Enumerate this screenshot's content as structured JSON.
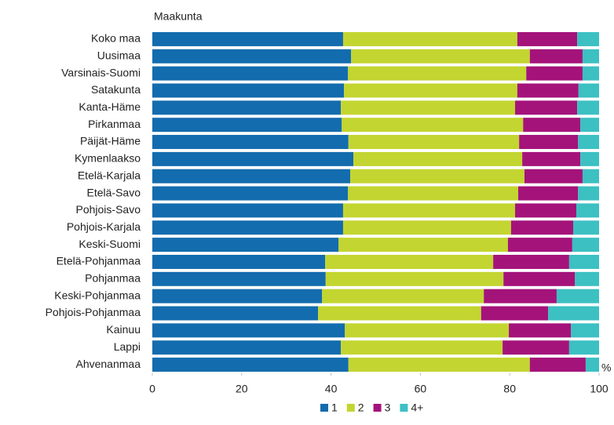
{
  "chart_data": {
    "type": "stacked-bar-horizontal",
    "y_axis_title": "Maakunta",
    "x_axis_unit": "%",
    "categories": [
      "Koko maa",
      "Uusimaa",
      "Varsinais-Suomi",
      "Satakunta",
      "Kanta-Häme",
      "Pirkanmaa",
      "Päijät-Häme",
      "Kymenlaakso",
      "Etelä-Karjala",
      "Etelä-Savo",
      "Pohjois-Savo",
      "Pohjois-Karjala",
      "Keski-Suomi",
      "Etelä-Pohjanmaa",
      "Pohjanmaa",
      "Keski-Pohjanmaa",
      "Pohjois-Pohjanmaa",
      "Kainuu",
      "Lappi",
      "Ahvenanmaa"
    ],
    "series": [
      {
        "name": "1",
        "color": "#136cae",
        "values": [
          42.7,
          44.5,
          43.8,
          42.9,
          42.2,
          42.4,
          43.9,
          45.0,
          44.3,
          43.8,
          42.7,
          42.7,
          41.7,
          38.7,
          38.8,
          38.0,
          37.1,
          43.1,
          42.2,
          43.9
        ]
      },
      {
        "name": "2",
        "color": "#c3d530",
        "values": [
          39.0,
          40.0,
          39.9,
          38.8,
          39.0,
          40.6,
          38.2,
          37.8,
          39.0,
          38.1,
          38.5,
          37.6,
          37.9,
          37.6,
          39.8,
          36.2,
          36.5,
          36.7,
          36.2,
          40.6
        ]
      },
      {
        "name": "3",
        "color": "#a4137a",
        "values": [
          13.4,
          11.8,
          12.6,
          13.7,
          13.9,
          12.8,
          13.2,
          13.0,
          13.0,
          13.4,
          13.7,
          13.9,
          14.4,
          17.0,
          16.0,
          16.3,
          15.0,
          13.9,
          14.9,
          12.5
        ]
      },
      {
        "name": "4+",
        "color": "#3cc0c2",
        "values": [
          4.9,
          3.7,
          3.7,
          4.6,
          4.9,
          4.2,
          4.7,
          4.2,
          3.7,
          4.7,
          5.1,
          5.8,
          6.0,
          6.7,
          5.4,
          9.5,
          11.4,
          6.3,
          6.7,
          3.0
        ]
      }
    ],
    "xlim": [
      0,
      100
    ],
    "xticks": [
      0,
      20,
      40,
      60,
      80,
      100
    ],
    "legend": "bottom"
  }
}
